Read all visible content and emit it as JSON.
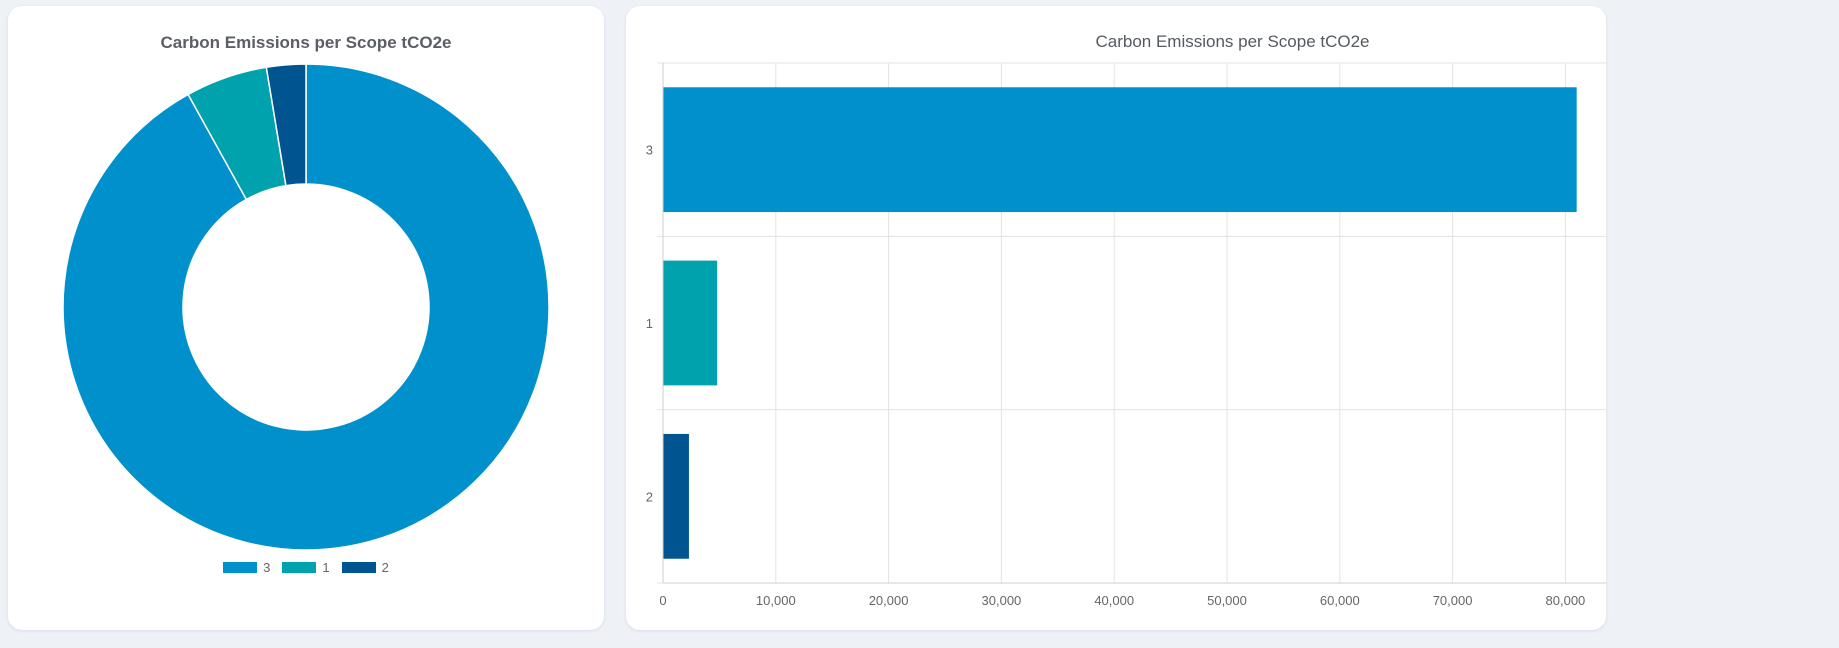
{
  "chart_data": [
    {
      "type": "pie",
      "style": "donut",
      "title": "Carbon Emissions per Scope tCO2e",
      "categories": [
        "3",
        "1",
        "2"
      ],
      "values": [
        81000,
        4800,
        2300
      ],
      "colors": [
        "#0090cb",
        "#00a2ad",
        "#005490"
      ],
      "legend": "bottom"
    },
    {
      "type": "bar",
      "orientation": "horizontal",
      "title": "Carbon Emissions per Scope tCO2e",
      "categories": [
        "3",
        "1",
        "2"
      ],
      "values": [
        81000,
        4800,
        2300
      ],
      "colors": [
        "#0090cb",
        "#00a2ad",
        "#005490"
      ],
      "xticks": [
        "0",
        "10,000",
        "20,000",
        "30,000",
        "40,000",
        "50,000",
        "60,000",
        "70,000",
        "80,000"
      ],
      "xlim": [
        0,
        80000
      ],
      "grid": true
    }
  ]
}
